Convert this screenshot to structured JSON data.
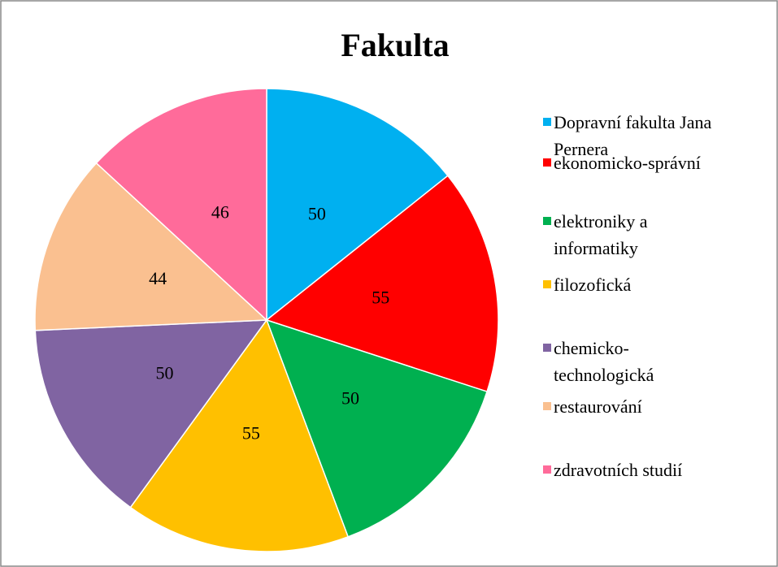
{
  "chart_data": {
    "type": "pie",
    "title": "Fakulta",
    "categories": [
      "Dopravní fakulta Jana Pernera",
      "ekonomicko-správní",
      "elektroniky a informatiky",
      "filozofická",
      "chemicko-technologická",
      "restaurování",
      "zdravotních studií"
    ],
    "values": [
      50,
      55,
      50,
      55,
      50,
      44,
      46
    ],
    "colors": [
      "#00b0f0",
      "#ff0000",
      "#00b050",
      "#ffc000",
      "#8064a2",
      "#fac090",
      "#ff6b9a"
    ],
    "legend": "right"
  }
}
